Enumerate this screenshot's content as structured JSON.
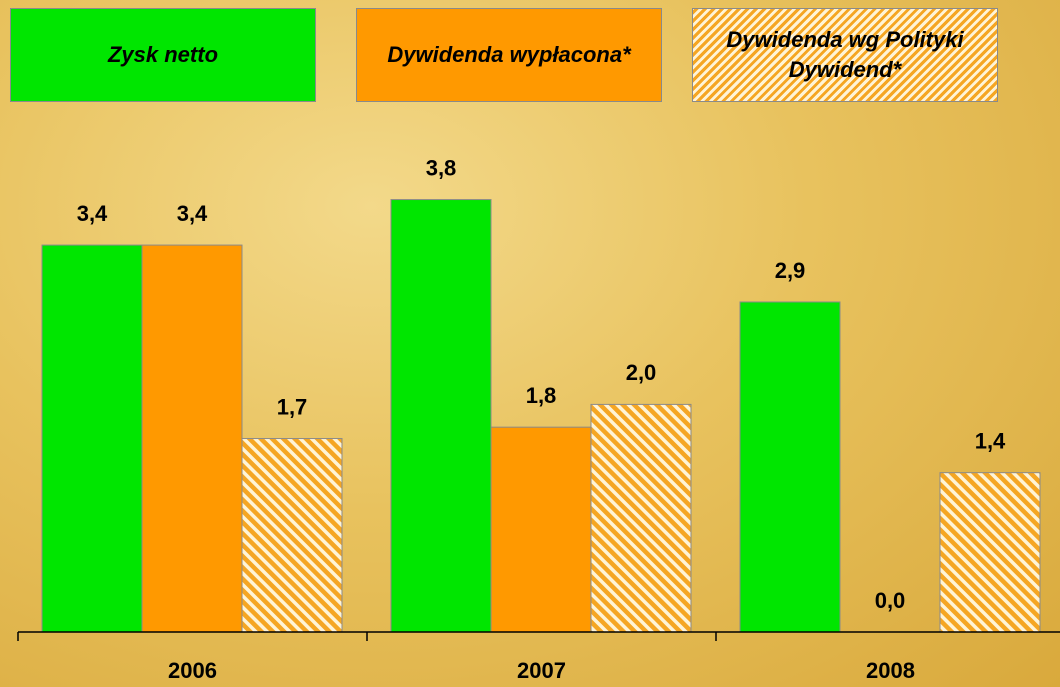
{
  "chart_data": {
    "type": "bar",
    "categories": [
      "2006",
      "2007",
      "2008"
    ],
    "series": [
      {
        "name": "Zysk netto",
        "color": "#00e600",
        "values": [
          3.4,
          3.8,
          2.9
        ],
        "value_labels": [
          "3,4",
          "3,8",
          "2,9"
        ]
      },
      {
        "name": "Dywidenda wypłacona*",
        "color": "#ff9900",
        "values": [
          3.4,
          1.8,
          0.0
        ],
        "value_labels": [
          "3,4",
          "1,8",
          "0,0"
        ]
      },
      {
        "name": "Dywidenda wg Polityki Dywidend*",
        "color": "#f5a623",
        "hatched": true,
        "values": [
          1.7,
          2.0,
          1.4
        ],
        "value_labels": [
          "1,7",
          "2,0",
          "1,4"
        ]
      }
    ],
    "ylim": [
      0,
      5
    ]
  }
}
